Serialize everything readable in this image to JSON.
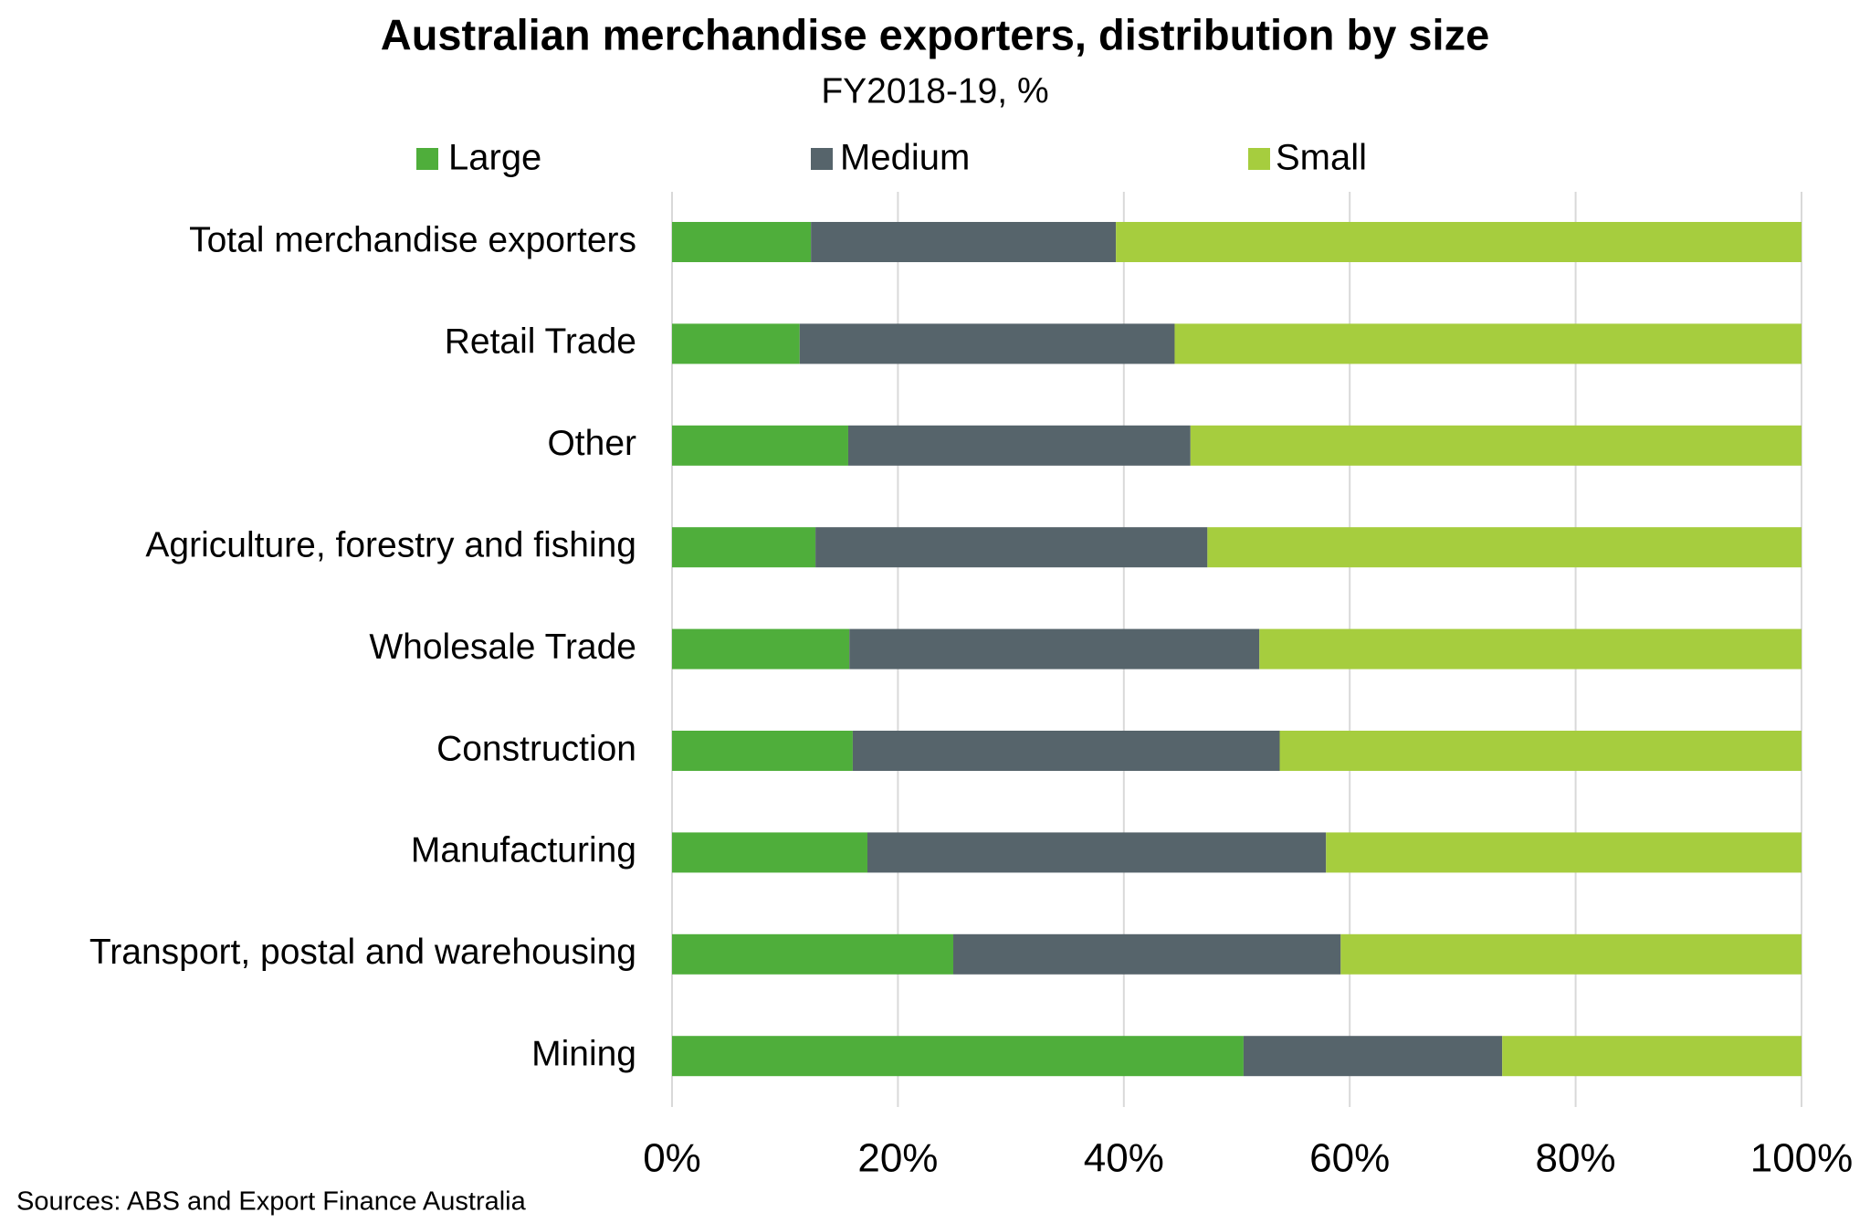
{
  "chart_data": {
    "type": "stacked_barh",
    "title": "Australian merchandise exporters, distribution by size",
    "subtitle": "FY2018-19, %",
    "source": "Sources: ABS and Export Finance Australia",
    "categories": [
      "Total merchandise exporters",
      "Retail Trade",
      "Other",
      "Agriculture, forestry and fishing",
      "Wholesale Trade",
      "Construction",
      "Manufacturing",
      "Transport, postal and warehousing",
      "Mining"
    ],
    "series": [
      {
        "name": "Large",
        "color": "#4fae3b",
        "values": [
          12.3,
          11.3,
          15.6,
          12.7,
          15.7,
          16.0,
          17.3,
          24.9,
          50.6
        ]
      },
      {
        "name": "Medium",
        "color": "#56646b",
        "values": [
          27.0,
          33.2,
          30.3,
          34.7,
          36.3,
          37.8,
          40.6,
          34.3,
          22.9
        ]
      },
      {
        "name": "Small",
        "color": "#a6cd3e",
        "values": [
          60.7,
          55.5,
          54.1,
          52.6,
          48.0,
          46.2,
          42.1,
          40.8,
          26.5
        ]
      }
    ],
    "xlim": [
      0,
      100
    ],
    "xticks": [
      {
        "value": 0,
        "label": "0%"
      },
      {
        "value": 20,
        "label": "20%"
      },
      {
        "value": 40,
        "label": "40%"
      },
      {
        "value": 60,
        "label": "60%"
      },
      {
        "value": 80,
        "label": "80%"
      },
      {
        "value": 100,
        "label": "100%"
      }
    ],
    "grid": true,
    "legend": "top"
  }
}
